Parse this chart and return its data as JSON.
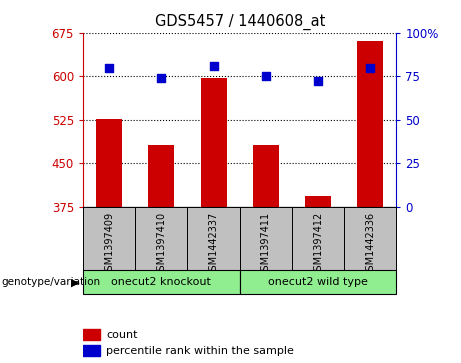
{
  "title": "GDS5457 / 1440608_at",
  "samples": [
    "GSM1397409",
    "GSM1397410",
    "GSM1442337",
    "GSM1397411",
    "GSM1397412",
    "GSM1442336"
  ],
  "counts": [
    527,
    481,
    597,
    482,
    393,
    660
  ],
  "percentile_ranks": [
    80,
    74,
    81,
    75,
    72,
    80
  ],
  "ylim_left": [
    375,
    675
  ],
  "ylim_right": [
    0,
    100
  ],
  "yticks_left": [
    375,
    450,
    525,
    600,
    675
  ],
  "yticks_right": [
    0,
    25,
    50,
    75,
    100
  ],
  "bar_color": "#CC0000",
  "dot_color": "#0000CC",
  "bar_width": 0.5,
  "left_axis_color": "#CC0000",
  "right_axis_color": "#0000CC",
  "label_area_color": "#C0C0C0",
  "group_color": "#90EE90",
  "group1_name": "onecut2 knockout",
  "group2_name": "onecut2 wild type",
  "genotype_label": "genotype/variation",
  "legend_count": "count",
  "legend_pct": "percentile rank within the sample"
}
